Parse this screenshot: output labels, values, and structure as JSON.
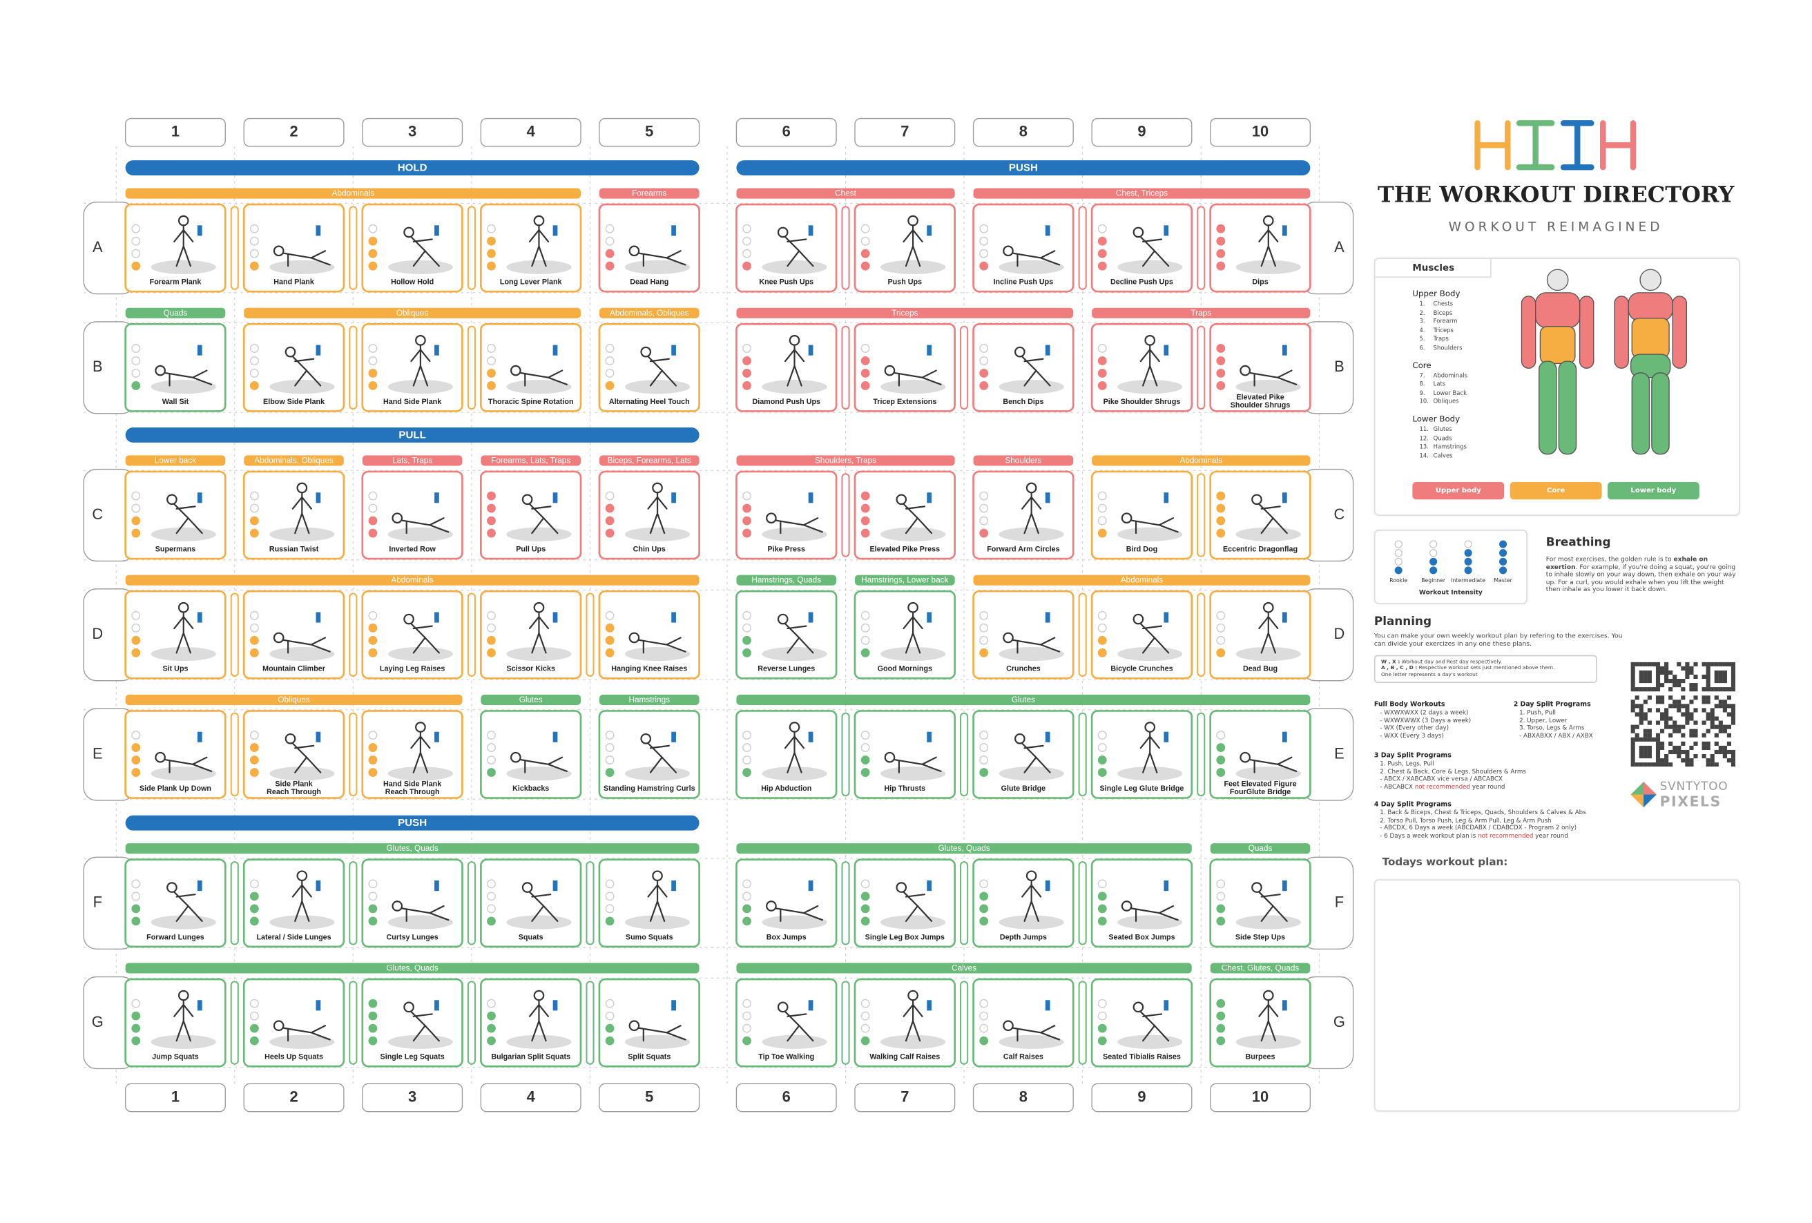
{
  "header": {
    "title": "THE WORKOUT DIRECTORY",
    "subtitle": "WORKOUT REIMAGINED"
  },
  "columns": [
    "1",
    "2",
    "3",
    "4",
    "5",
    "6",
    "7",
    "8",
    "9",
    "10"
  ],
  "rows": [
    {
      "letter": "A",
      "left": {
        "section": {
          "label": "HOLD",
          "color": "#2474bd"
        },
        "groups": [
          {
            "label": "Abdominals",
            "color": "#f6ad42",
            "exercises": [
              {
                "name": "Forearm Plank",
                "level": 1
              },
              {
                "name": "Hand Plank",
                "level": 1
              },
              {
                "name": "Hollow Hold",
                "level": 3
              },
              {
                "name": "Long Lever Plank",
                "level": 3
              }
            ]
          },
          {
            "label": "Forearms",
            "color": "#ef7d7d",
            "exercises": [
              {
                "name": "Dead Hang",
                "level": 2
              }
            ]
          }
        ]
      },
      "right": {
        "section": {
          "label": "PUSH",
          "color": "#2474bd"
        },
        "groups": [
          {
            "label": "Chest",
            "color": "#ef7d7d",
            "exercises": [
              {
                "name": "Knee Push Ups",
                "level": 1
              },
              {
                "name": "Push Ups",
                "level": 2
              }
            ]
          },
          {
            "label": "Chest, Triceps",
            "color": "#ef7d7d",
            "exercises": [
              {
                "name": "Incline Push Ups",
                "level": 1
              },
              {
                "name": "Decline Push Ups",
                "level": 3
              },
              {
                "name": "Dips",
                "level": 4
              }
            ]
          }
        ]
      }
    },
    {
      "letter": "B",
      "left": {
        "groups": [
          {
            "label": "Quads",
            "color": "#69ba78",
            "exercises": [
              {
                "name": "Wall Sit",
                "level": 1
              }
            ]
          },
          {
            "label": "Obliques",
            "color": "#f6ad42",
            "exercises": [
              {
                "name": "Elbow Side Plank",
                "level": 1
              },
              {
                "name": "Hand Side Plank",
                "level": 2
              },
              {
                "name": "Thoracic Spine Rotation",
                "level": 2
              }
            ]
          },
          {
            "label": "Abdominals, Obliques",
            "color": "#f6ad42",
            "exercises": [
              {
                "name": "Alternating Heel Touch",
                "level": 1
              }
            ]
          }
        ]
      },
      "right": {
        "groups": [
          {
            "label": "Triceps",
            "color": "#ef7d7d",
            "exercises": [
              {
                "name": "Diamond Push Ups",
                "level": 3
              },
              {
                "name": "Tricep Extensions",
                "level": 3
              },
              {
                "name": "Bench Dips",
                "level": 2
              }
            ]
          },
          {
            "label": "Traps",
            "color": "#ef7d7d",
            "exercises": [
              {
                "name": "Pike Shoulder Shrugs",
                "level": 3
              },
              {
                "name": "Elevated Pike Shoulder Shrugs",
                "level": 4
              }
            ]
          }
        ]
      }
    },
    {
      "letter": "C",
      "left": {
        "section": {
          "label": "PULL",
          "color": "#2474bd"
        },
        "groups": [
          {
            "label": "Lower back",
            "color": "#f6ad42",
            "exercises": [
              {
                "name": "Supermans",
                "level": 2
              }
            ]
          },
          {
            "label": "Abdominals, Obliques",
            "color": "#f6ad42",
            "exercises": [
              {
                "name": "Russian Twist",
                "level": 2
              }
            ]
          },
          {
            "label": "Lats, Traps",
            "color": "#ef7d7d",
            "exercises": [
              {
                "name": "Inverted Row",
                "level": 2
              }
            ]
          },
          {
            "label": "Forearms, Lats, Traps",
            "color": "#ef7d7d",
            "exercises": [
              {
                "name": "Pull Ups",
                "level": 4
              }
            ]
          },
          {
            "label": "Biceps, Forearms, Lats",
            "color": "#ef7d7d",
            "exercises": [
              {
                "name": "Chin Ups",
                "level": 3
              }
            ]
          }
        ]
      },
      "right": {
        "groups": [
          {
            "label": "Shoulders, Traps",
            "color": "#ef7d7d",
            "exercises": [
              {
                "name": "Pike Press",
                "level": 3
              },
              {
                "name": "Elevated Pike Press",
                "level": 4
              }
            ]
          },
          {
            "label": "Shoulders",
            "color": "#ef7d7d",
            "exercises": [
              {
                "name": "Forward Arm Circles",
                "level": 1
              }
            ]
          },
          {
            "label": "Abdominals",
            "color": "#f6ad42",
            "exercises": [
              {
                "name": "Bird Dog",
                "level": 1
              },
              {
                "name": "Eccentric Dragonflag",
                "level": 4
              }
            ]
          }
        ]
      }
    },
    {
      "letter": "D",
      "left": {
        "groups": [
          {
            "label": "Abdominals",
            "color": "#f6ad42",
            "exercises": [
              {
                "name": "Sit Ups",
                "level": 2
              },
              {
                "name": "Mountain Climber",
                "level": 2
              },
              {
                "name": "Laying Leg Raises",
                "level": 3
              },
              {
                "name": "Scissor Kicks",
                "level": 2
              },
              {
                "name": "Hanging Knee Raises",
                "level": 3
              }
            ]
          }
        ]
      },
      "right": {
        "groups": [
          {
            "label": "Hamstrings, Quads",
            "color": "#69ba78",
            "exercises": [
              {
                "name": "Reverse Lunges",
                "level": 2
              }
            ]
          },
          {
            "label": "Hamstrings, Lower back",
            "color": "#69ba78",
            "exercises": [
              {
                "name": "Good Mornings",
                "level": 1
              }
            ]
          },
          {
            "label": "Abdominals",
            "color": "#f6ad42",
            "exercises": [
              {
                "name": "Crunches",
                "level": 1
              },
              {
                "name": "Bicycle Crunches",
                "level": 2
              },
              {
                "name": "Dead Bug",
                "level": 1
              }
            ]
          }
        ]
      }
    },
    {
      "letter": "E",
      "left": {
        "groups": [
          {
            "label": "Obliques",
            "color": "#f6ad42",
            "exercises": [
              {
                "name": "Side Plank Up Down",
                "level": 3
              },
              {
                "name": "Side Plank Reach Through",
                "level": 3
              },
              {
                "name": "Hand Side Plank Reach Through",
                "level": 3
              }
            ]
          },
          {
            "label": "Glutes",
            "color": "#69ba78",
            "exercises": [
              {
                "name": "Kickbacks",
                "level": 1
              }
            ]
          },
          {
            "label": "Hamstrings",
            "color": "#69ba78",
            "exercises": [
              {
                "name": "Standing Hamstring Curls",
                "level": 1
              }
            ]
          }
        ]
      },
      "right": {
        "groups": [
          {
            "label": "Glutes",
            "color": "#69ba78",
            "exercises": [
              {
                "name": "Hip Abduction",
                "level": 1
              },
              {
                "name": "Hip Thrusts",
                "level": 2
              },
              {
                "name": "Glute Bridge",
                "level": 1
              },
              {
                "name": "Single Leg Glute Bridge",
                "level": 2
              },
              {
                "name": "Feet Elevated Figure FourGlute Bridge",
                "level": 3
              }
            ]
          }
        ]
      }
    },
    {
      "letter": "F",
      "left": {
        "section": {
          "label": "PUSH",
          "color": "#2474bd"
        },
        "groups": [
          {
            "label": "Glutes, Quads",
            "color": "#69ba78",
            "exercises": [
              {
                "name": "Forward Lunges",
                "level": 2
              },
              {
                "name": "Lateral / Side Lunges",
                "level": 3
              },
              {
                "name": "Curtsy Lunges",
                "level": 2
              },
              {
                "name": "Squats",
                "level": 1
              },
              {
                "name": "Sumo Squats",
                "level": 1
              }
            ]
          }
        ]
      },
      "right": {
        "groups": [
          {
            "label": "Glutes, Quads",
            "color": "#69ba78",
            "exercises": [
              {
                "name": "Box Jumps",
                "level": 2
              },
              {
                "name": "Single Leg Box Jumps",
                "level": 3
              },
              {
                "name": "Depth Jumps",
                "level": 3
              },
              {
                "name": "Seated Box Jumps",
                "level": 3
              }
            ]
          },
          {
            "label": "Quads",
            "color": "#69ba78",
            "exercises": [
              {
                "name": "Side Step Ups",
                "level": 2
              }
            ]
          }
        ]
      }
    },
    {
      "letter": "G",
      "left": {
        "groups": [
          {
            "label": "Glutes, Quads",
            "color": "#69ba78",
            "exercises": [
              {
                "name": "Jump Squats",
                "level": 3
              },
              {
                "name": "Heels Up Squats",
                "level": 2
              },
              {
                "name": "Single Leg Squats",
                "level": 4
              },
              {
                "name": "Bulgarian Split Squats",
                "level": 3
              },
              {
                "name": "Split Squats",
                "level": 2
              }
            ]
          }
        ]
      },
      "right": {
        "groups": [
          {
            "label": "Calves",
            "color": "#69ba78",
            "exercises": [
              {
                "name": "Tip Toe Walking",
                "level": 1
              },
              {
                "name": "Walking Calf Raises",
                "level": 1
              },
              {
                "name": "Calf Raises",
                "level": 1
              },
              {
                "name": "Seated Tibialis Raises",
                "level": 2
              }
            ]
          },
          {
            "label": "Chest, Glutes, Quads",
            "color": "#69ba78",
            "exercises": [
              {
                "name": "Burpees",
                "level": 4
              }
            ]
          }
        ]
      }
    }
  ],
  "muscles": {
    "title": "Muscles",
    "groups": [
      {
        "name": "Upper Body",
        "items": [
          {
            "no": "1.",
            "name": "Chests"
          },
          {
            "no": "2.",
            "name": "Biceps"
          },
          {
            "no": "3.",
            "name": "Forearm"
          },
          {
            "no": "4.",
            "name": "Triceps"
          },
          {
            "no": "5.",
            "name": "Traps"
          },
          {
            "no": "6.",
            "name": "Shoulders"
          }
        ]
      },
      {
        "name": "Core",
        "items": [
          {
            "no": "7.",
            "name": "Abdominals"
          },
          {
            "no": "8.",
            "name": "Lats"
          },
          {
            "no": "9.",
            "name": "Lower Back"
          },
          {
            "no": "10.",
            "name": "Obliques"
          }
        ]
      },
      {
        "name": "Lower Body",
        "items": [
          {
            "no": "11.",
            "name": "Glutes"
          },
          {
            "no": "12.",
            "name": "Quads"
          },
          {
            "no": "13.",
            "name": "Hamstrings"
          },
          {
            "no": "14.",
            "name": "Calves"
          }
        ]
      }
    ],
    "legend": [
      {
        "label": "Upper body",
        "color": "#ef7d7d"
      },
      {
        "label": "Core",
        "color": "#f6ad42"
      },
      {
        "label": "Lower body",
        "color": "#69ba78"
      }
    ]
  },
  "intensity": {
    "title": "Workout Intensity",
    "levels": [
      "Rookie",
      "Beginner",
      "Intermediate",
      "Master"
    ],
    "color": "#2474bd"
  },
  "breathing": {
    "title": "Breathing",
    "lead": "For most exercises, the golden rule is to ",
    "bold": "exhale on exertion",
    "rest": ". For example, if you're doing a squat, you're going to inhale slowly on your way down, then exhale on your way up. For a curl, you would exhale when you lift the weight then inhale as you lower it back down."
  },
  "planning": {
    "title": "Planning",
    "intro": "You can make your own weekly workout plan by refering to the exercises. You can divide your exercizes in any one these plans.",
    "key": [
      {
        "k": "W , X :",
        "v": " Workout day and Rest day respectively."
      },
      {
        "k": "A , B , C , D :",
        "v": " Respective workout sets just mentioned above them."
      },
      {
        "v": "One letter represents a day's workout"
      }
    ],
    "programs": [
      {
        "title": "Full Body Workouts",
        "lines": [
          "- WXWXWXX (2 days a week)",
          "- WXWXWWX (3 Days a week)",
          "- WX (Every other day)",
          "- WXX (Every 3 days)"
        ]
      },
      {
        "title": "2 Day Split Programs",
        "lines": [
          "1. Push, Pull",
          "2. Upper, Lower",
          "3. Torso, Legs & Arms",
          "- ABXABXX / ABX / AXBX"
        ]
      },
      {
        "title": "3 Day Split Programs",
        "lines": [
          "1. Push, Legs, Pull",
          "2. Chest & Back, Core & Legs, Shoulders & Arms",
          "- ABCX / XABCABX vice versa / ABCABCX",
          {
            "t": "- ABCABCX ",
            "warn": "not recommended",
            "after": " year round"
          }
        ]
      },
      {
        "title": "4 Day Split Programs",
        "lines": [
          "1. Back & Biceps, Chest & Triceps, Quads, Shoulders & Calves & Abs",
          "2. Torso Pull, Torso Push, Leg & Arm Pull, Leg & Arm Push",
          "- ABCDX, 6 Days a week (ABCDABX / CDABCDX - Program 2 only)",
          {
            "t": "- 6 Days a week workout plan is ",
            "warn": "not recommended",
            "after": " year round"
          }
        ]
      }
    ]
  },
  "brand": {
    "line1": "SVNTYTOO",
    "line2": "PIXELS"
  },
  "today": {
    "label": "Todays workout plan:"
  }
}
